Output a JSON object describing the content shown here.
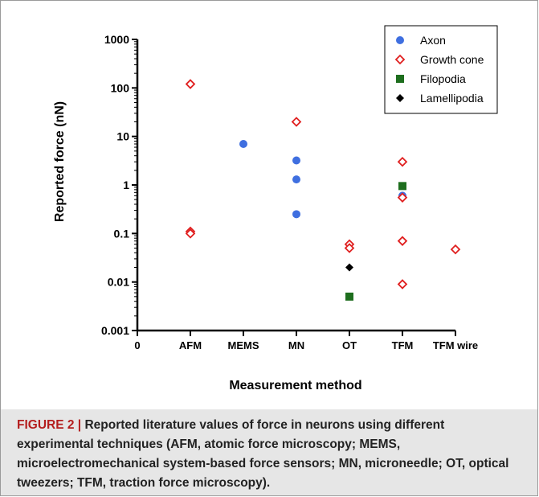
{
  "chart_data": {
    "type": "scatter",
    "title": "",
    "xlabel": "Measurement method",
    "ylabel": "Reported force (nN)",
    "categories": [
      "0",
      "AFM",
      "MEMS",
      "MN",
      "OT",
      "TFM",
      "TFM wire"
    ],
    "y_scale": "log",
    "ylim": [
      0.001,
      1000
    ],
    "y_ticks": [
      "0.001",
      "0.01",
      "0.1",
      "1",
      "10",
      "100",
      "1000"
    ],
    "grid": false,
    "legend_position": "top-right",
    "series": [
      {
        "name": "Axon",
        "marker": "circle",
        "color": "#3f6fe0",
        "points": [
          {
            "x": "MEMS",
            "y": 7
          },
          {
            "x": "MN",
            "y": 3.2
          },
          {
            "x": "MN",
            "y": 1.3
          },
          {
            "x": "MN",
            "y": 0.25
          },
          {
            "x": "TFM",
            "y": 0.6
          }
        ]
      },
      {
        "name": "Growth cone",
        "marker": "diamond-open",
        "color": "#e02020",
        "points": [
          {
            "x": "AFM",
            "y": 120
          },
          {
            "x": "AFM",
            "y": 0.11
          },
          {
            "x": "AFM",
            "y": 0.1
          },
          {
            "x": "MN",
            "y": 20
          },
          {
            "x": "OT",
            "y": 0.06
          },
          {
            "x": "OT",
            "y": 0.05
          },
          {
            "x": "TFM",
            "y": 3
          },
          {
            "x": "TFM",
            "y": 0.55
          },
          {
            "x": "TFM",
            "y": 0.07
          },
          {
            "x": "TFM",
            "y": 0.009
          },
          {
            "x": "TFM wire",
            "y": 0.047
          }
        ]
      },
      {
        "name": "Filopodia",
        "marker": "square",
        "color": "#1e6e1e",
        "points": [
          {
            "x": "OT",
            "y": 0.005
          },
          {
            "x": "TFM",
            "y": 0.95
          }
        ]
      },
      {
        "name": "Lamellipodia",
        "marker": "diamond",
        "color": "#000000",
        "points": [
          {
            "x": "OT",
            "y": 0.02
          }
        ]
      }
    ]
  },
  "caption": {
    "label": "FIGURE 2 | ",
    "text": "Reported literature values of force in neurons using different experimental techniques (AFM, atomic force microscopy; MEMS, microelectromechanical system-based force sensors; MN, microneedle; OT, optical tweezers; TFM, traction force microscopy)."
  }
}
